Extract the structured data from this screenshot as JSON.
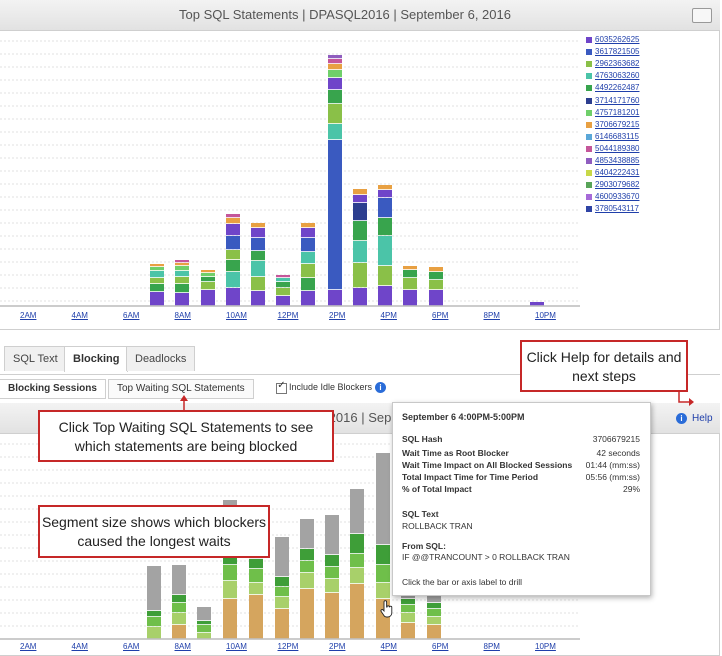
{
  "top_chart": {
    "title": "Top SQL Statements | DPASQL2016 | September 6, 2016",
    "legend": [
      {
        "hash": "6035262625",
        "color": "#6f45c9"
      },
      {
        "hash": "3617821505",
        "color": "#3a5ac0"
      },
      {
        "hash": "2962363682",
        "color": "#8ac048"
      },
      {
        "hash": "4763063260",
        "color": "#4bc4a8"
      },
      {
        "hash": "4492262487",
        "color": "#38a44d"
      },
      {
        "hash": "3714171760",
        "color": "#2c3e8f"
      },
      {
        "hash": "4757181201",
        "color": "#6fcf6a"
      },
      {
        "hash": "3706679215",
        "color": "#e8a042"
      },
      {
        "hash": "6146683115",
        "color": "#5aa7d8"
      },
      {
        "hash": "5044189380",
        "color": "#c4569a"
      },
      {
        "hash": "4853438885",
        "color": "#8f5dbf"
      },
      {
        "hash": "6404222431",
        "color": "#c8d848"
      },
      {
        "hash": "2903079682",
        "color": "#58a458"
      },
      {
        "hash": "4600933670",
        "color": "#a66ad8"
      },
      {
        "hash": "3780543117",
        "color": "#2f44a5"
      }
    ],
    "x_labels": [
      "2AM",
      "4AM",
      "6AM",
      "8AM",
      "10AM",
      "12PM",
      "2PM",
      "4PM",
      "6PM",
      "8PM",
      "10PM"
    ]
  },
  "tabs": {
    "sql_text": "SQL Text",
    "blocking": "Blocking",
    "deadlocks": "Deadlocks"
  },
  "subtabs": {
    "blocking_sessions": "Blocking Sessions",
    "top_waiting": "Top Waiting SQL Statements"
  },
  "include_idle": "Include Idle Blockers",
  "bottom_chart": {
    "title": "2016 | Sep",
    "help": "Help",
    "x_labels": [
      "2AM",
      "4AM",
      "6AM",
      "8AM",
      "10AM",
      "12PM",
      "2PM",
      "4PM",
      "6PM",
      "8PM",
      "10PM"
    ]
  },
  "callouts": {
    "help": "Click Help for details and next steps",
    "top_waiting": "Click Top Waiting SQL Statements to see which statements are being blocked",
    "segment": "Segment size shows which blockers caused the longest waits"
  },
  "tooltip": {
    "title": "September 6 4:00PM-5:00PM",
    "sql_hash_label": "SQL Hash",
    "sql_hash_value": "3706679215",
    "rows": [
      {
        "label": "Wait Time as Root Blocker",
        "value": "42 seconds"
      },
      {
        "label": "Wait Time Impact on All Blocked Sessions",
        "value": "01:44 (mm:ss)"
      },
      {
        "label": "Total Impact Time for Time Period",
        "value": "05:56 (mm:ss)"
      },
      {
        "label": "% of Total Impact",
        "value": "29%"
      }
    ],
    "sql_text_label": "SQL Text",
    "sql_text_value": "ROLLBACK TRAN",
    "from_sql_label": "From SQL:",
    "from_sql_value": "IF @@TRANCOUNT > 0 ROLLBACK TRAN",
    "footer": "Click the bar or axis label to drill"
  }
}
